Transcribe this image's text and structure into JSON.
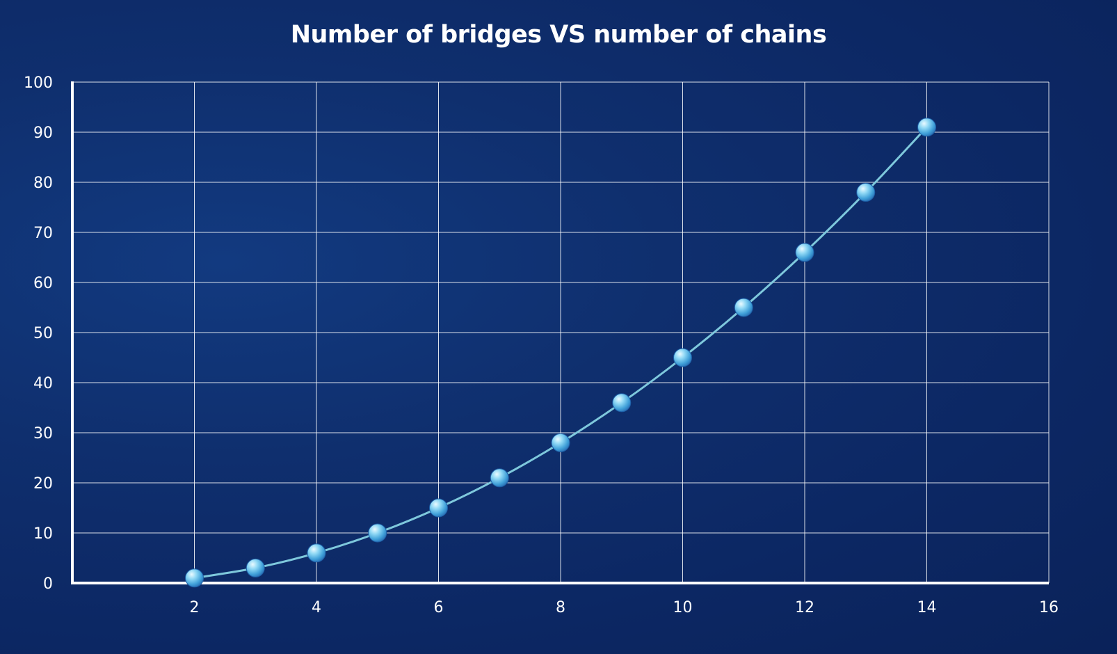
{
  "chart_data": {
    "type": "line",
    "title": "Number of bridges VS number of chains",
    "xlabel": "",
    "ylabel": "",
    "xlim": [
      0,
      16
    ],
    "ylim": [
      0,
      100
    ],
    "x_ticks": [
      2,
      4,
      6,
      8,
      10,
      12,
      14,
      16
    ],
    "y_ticks": [
      0,
      10,
      20,
      30,
      40,
      50,
      60,
      70,
      80,
      90,
      100
    ],
    "grid": true,
    "line_color": "#7ec8dc",
    "marker_color": "#5fb8e6",
    "series": [
      {
        "x": [
          2,
          3,
          4,
          5,
          6,
          7,
          8,
          9,
          10,
          11,
          12,
          13,
          14
        ],
        "values": [
          1,
          3,
          6,
          10,
          15,
          21,
          28,
          36,
          45,
          55,
          66,
          78,
          91
        ]
      }
    ]
  }
}
